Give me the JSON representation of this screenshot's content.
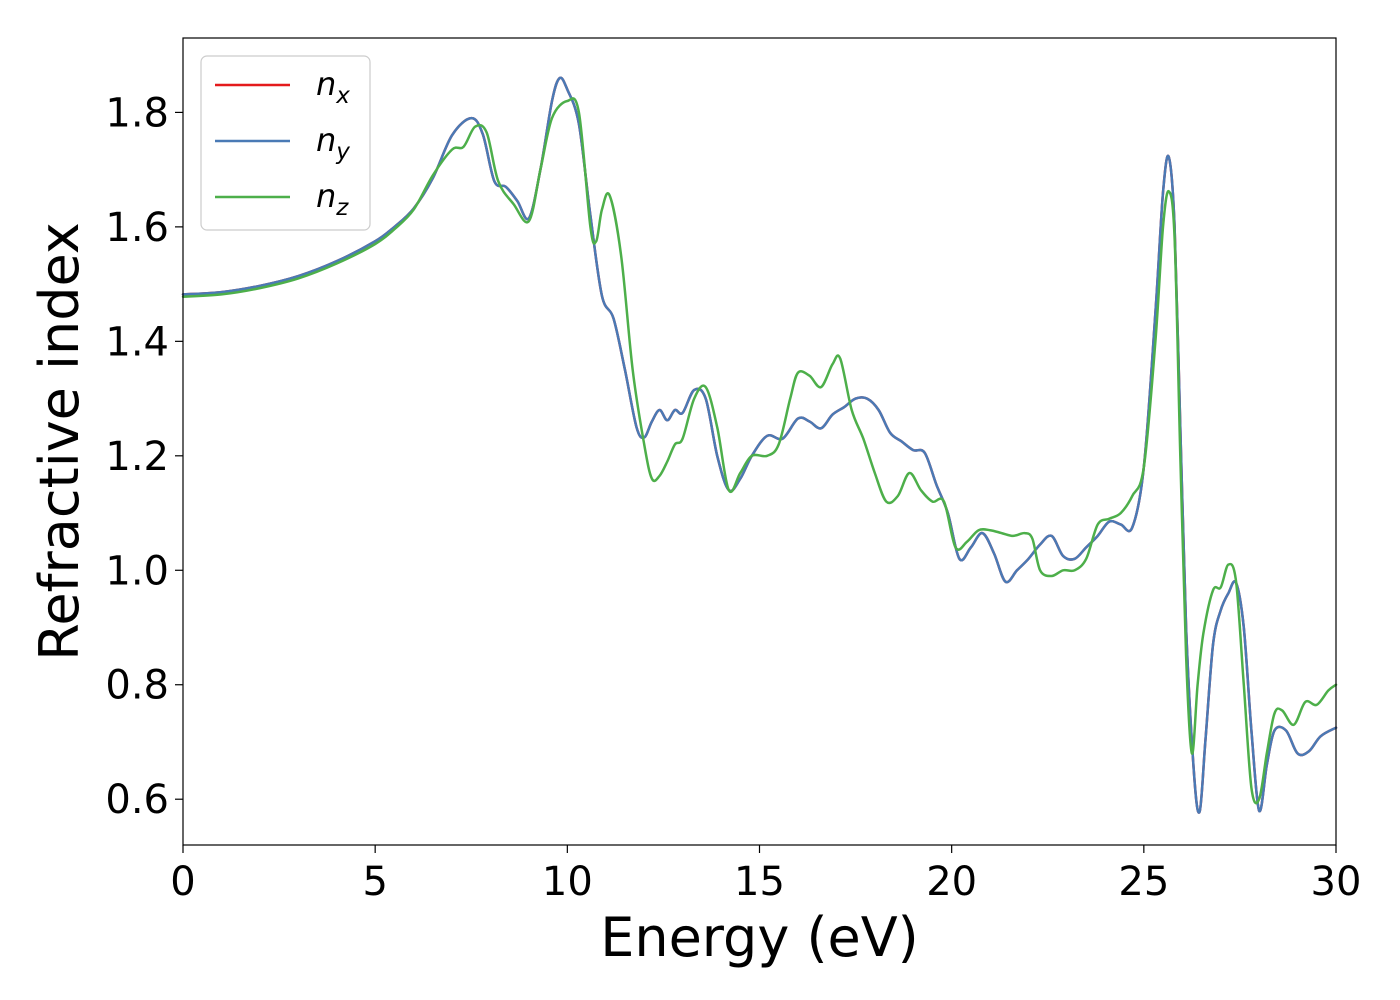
{
  "chart_data": {
    "type": "line",
    "title": "",
    "xlabel": "Energy (eV)",
    "ylabel": "Refractive index",
    "xlim": [
      0,
      30
    ],
    "ylim": [
      0.52,
      1.93
    ],
    "xticks": [
      0,
      5,
      10,
      15,
      20,
      25,
      30
    ],
    "yticks": [
      0.6,
      0.8,
      1.0,
      1.2,
      1.4,
      1.6,
      1.8
    ],
    "x_tick_labels": [
      "0",
      "5",
      "10",
      "15",
      "20",
      "25",
      "30"
    ],
    "y_tick_labels": [
      "0.6",
      "0.8",
      "1.0",
      "1.2",
      "1.4",
      "1.6",
      "1.8"
    ],
    "grid": false,
    "legend": "top-left",
    "series": [
      {
        "name": "n",
        "sub": "x",
        "color": "#e41a1c",
        "x": [
          0,
          1,
          2,
          3,
          4,
          5,
          5.5,
          6,
          6.5,
          7,
          7.5,
          7.8,
          8.1,
          8.4,
          8.7,
          9,
          9.3,
          9.6,
          9.8,
          10,
          10.3,
          10.6,
          10.9,
          11.2,
          11.5,
          11.8,
          12.0,
          12.2,
          12.4,
          12.6,
          12.8,
          13.0,
          13.3,
          13.6,
          13.9,
          14.2,
          14.5,
          14.8,
          15.2,
          15.6,
          16.0,
          16.3,
          16.6,
          16.9,
          17.2,
          17.5,
          17.8,
          18.1,
          18.4,
          18.7,
          19.0,
          19.3,
          19.6,
          19.9,
          20.2,
          20.5,
          20.8,
          21.1,
          21.4,
          21.7,
          22.0,
          22.3,
          22.6,
          22.9,
          23.2,
          23.5,
          23.8,
          24.1,
          24.4,
          24.7,
          25.0,
          25.3,
          25.5,
          25.65,
          25.8,
          25.95,
          26.1,
          26.3,
          26.45,
          26.6,
          26.8,
          27.0,
          27.2,
          27.4,
          27.6,
          27.8,
          28.0,
          28.2,
          28.4,
          28.7,
          29.0,
          29.3,
          29.6,
          30
        ],
        "y": [
          1.482,
          1.486,
          1.497,
          1.514,
          1.54,
          1.575,
          1.6,
          1.632,
          1.685,
          1.76,
          1.79,
          1.762,
          1.68,
          1.67,
          1.645,
          1.615,
          1.7,
          1.82,
          1.86,
          1.84,
          1.78,
          1.62,
          1.48,
          1.44,
          1.35,
          1.25,
          1.232,
          1.26,
          1.28,
          1.262,
          1.28,
          1.275,
          1.315,
          1.3,
          1.2,
          1.14,
          1.16,
          1.2,
          1.235,
          1.23,
          1.265,
          1.26,
          1.248,
          1.272,
          1.285,
          1.3,
          1.3,
          1.28,
          1.24,
          1.225,
          1.21,
          1.205,
          1.15,
          1.1,
          1.02,
          1.04,
          1.065,
          1.03,
          0.98,
          1.0,
          1.02,
          1.045,
          1.06,
          1.025,
          1.02,
          1.04,
          1.06,
          1.085,
          1.08,
          1.075,
          1.18,
          1.45,
          1.66,
          1.722,
          1.6,
          1.25,
          0.9,
          0.65,
          0.578,
          0.7,
          0.87,
          0.93,
          0.96,
          0.978,
          0.9,
          0.72,
          0.58,
          0.66,
          0.72,
          0.72,
          0.68,
          0.684,
          0.71,
          0.725
        ]
      },
      {
        "name": "n",
        "sub": "y",
        "color": "#4a7ab5",
        "x": [
          0,
          1,
          2,
          3,
          4,
          5,
          5.5,
          6,
          6.5,
          7,
          7.5,
          7.8,
          8.1,
          8.4,
          8.7,
          9,
          9.3,
          9.6,
          9.8,
          10,
          10.3,
          10.6,
          10.9,
          11.2,
          11.5,
          11.8,
          12.0,
          12.2,
          12.4,
          12.6,
          12.8,
          13.0,
          13.3,
          13.6,
          13.9,
          14.2,
          14.5,
          14.8,
          15.2,
          15.6,
          16.0,
          16.3,
          16.6,
          16.9,
          17.2,
          17.5,
          17.8,
          18.1,
          18.4,
          18.7,
          19.0,
          19.3,
          19.6,
          19.9,
          20.2,
          20.5,
          20.8,
          21.1,
          21.4,
          21.7,
          22.0,
          22.3,
          22.6,
          22.9,
          23.2,
          23.5,
          23.8,
          24.1,
          24.4,
          24.7,
          25.0,
          25.3,
          25.5,
          25.65,
          25.8,
          25.95,
          26.1,
          26.3,
          26.45,
          26.6,
          26.8,
          27.0,
          27.2,
          27.4,
          27.6,
          27.8,
          28.0,
          28.2,
          28.4,
          28.7,
          29.0,
          29.3,
          29.6,
          30
        ],
        "y": [
          1.482,
          1.486,
          1.497,
          1.514,
          1.54,
          1.575,
          1.6,
          1.632,
          1.685,
          1.76,
          1.79,
          1.762,
          1.68,
          1.67,
          1.645,
          1.615,
          1.7,
          1.82,
          1.86,
          1.84,
          1.78,
          1.62,
          1.48,
          1.44,
          1.35,
          1.25,
          1.232,
          1.26,
          1.28,
          1.262,
          1.28,
          1.275,
          1.315,
          1.3,
          1.2,
          1.14,
          1.16,
          1.2,
          1.235,
          1.23,
          1.265,
          1.26,
          1.248,
          1.272,
          1.285,
          1.3,
          1.3,
          1.28,
          1.24,
          1.225,
          1.21,
          1.205,
          1.15,
          1.1,
          1.02,
          1.04,
          1.065,
          1.03,
          0.98,
          1.0,
          1.02,
          1.045,
          1.06,
          1.025,
          1.02,
          1.04,
          1.06,
          1.085,
          1.08,
          1.075,
          1.18,
          1.45,
          1.66,
          1.722,
          1.6,
          1.25,
          0.9,
          0.65,
          0.578,
          0.7,
          0.87,
          0.93,
          0.96,
          0.978,
          0.9,
          0.72,
          0.58,
          0.66,
          0.72,
          0.72,
          0.68,
          0.684,
          0.71,
          0.725
        ]
      },
      {
        "name": "n",
        "sub": "z",
        "color": "#4daf4a",
        "x": [
          0,
          1,
          2,
          3,
          4,
          5,
          5.5,
          6,
          6.5,
          7,
          7.3,
          7.6,
          7.9,
          8.2,
          8.6,
          9,
          9.3,
          9.6,
          10.0,
          10.3,
          10.6,
          10.75,
          10.9,
          11.1,
          11.4,
          11.7,
          12.0,
          12.2,
          12.4,
          12.6,
          12.8,
          13.0,
          13.3,
          13.6,
          13.9,
          14.2,
          14.5,
          14.8,
          15.2,
          15.5,
          15.8,
          16.0,
          16.3,
          16.6,
          16.9,
          17.1,
          17.4,
          17.7,
          18.0,
          18.3,
          18.6,
          18.9,
          19.2,
          19.5,
          19.8,
          20.1,
          20.4,
          20.7,
          21.0,
          21.3,
          21.6,
          21.9,
          22.1,
          22.3,
          22.6,
          22.9,
          23.2,
          23.5,
          23.8,
          24.1,
          24.4,
          24.7,
          25.0,
          25.3,
          25.5,
          25.65,
          25.8,
          25.95,
          26.1,
          26.25,
          26.4,
          26.55,
          26.8,
          27.0,
          27.2,
          27.4,
          27.6,
          27.8,
          28.0,
          28.2,
          28.4,
          28.6,
          28.9,
          29.2,
          29.5,
          29.8,
          30
        ],
        "y": [
          1.478,
          1.482,
          1.493,
          1.51,
          1.536,
          1.57,
          1.596,
          1.63,
          1.69,
          1.735,
          1.74,
          1.775,
          1.765,
          1.68,
          1.64,
          1.61,
          1.7,
          1.79,
          1.82,
          1.8,
          1.6,
          1.575,
          1.63,
          1.655,
          1.55,
          1.35,
          1.22,
          1.16,
          1.165,
          1.19,
          1.22,
          1.23,
          1.3,
          1.32,
          1.25,
          1.14,
          1.17,
          1.2,
          1.2,
          1.22,
          1.3,
          1.345,
          1.34,
          1.32,
          1.36,
          1.37,
          1.28,
          1.23,
          1.17,
          1.12,
          1.13,
          1.17,
          1.14,
          1.12,
          1.12,
          1.04,
          1.05,
          1.07,
          1.07,
          1.065,
          1.06,
          1.065,
          1.055,
          1.0,
          0.99,
          1.0,
          1.0,
          1.02,
          1.08,
          1.09,
          1.1,
          1.13,
          1.18,
          1.4,
          1.6,
          1.662,
          1.58,
          1.2,
          0.85,
          0.68,
          0.8,
          0.89,
          0.965,
          0.97,
          1.01,
          0.98,
          0.8,
          0.62,
          0.6,
          0.68,
          0.75,
          0.755,
          0.73,
          0.77,
          0.765,
          0.79,
          0.8
        ]
      }
    ]
  }
}
